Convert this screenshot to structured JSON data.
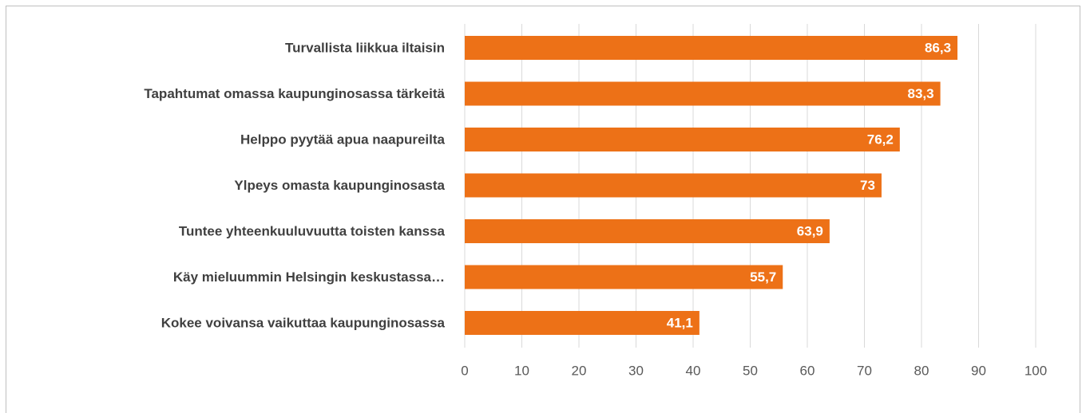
{
  "chart_data": {
    "type": "bar",
    "orientation": "horizontal",
    "categories": [
      "Turvallista liikkua iltaisin",
      "Tapahtumat omassa kaupunginosassa tärkeitä",
      "Helppo pyytää apua naapureilta",
      "Ylpeys omasta kaupunginosasta",
      "Tuntee yhteenkuuluvuutta toisten kanssa",
      "Käy mieluummin Helsingin keskustassa…",
      "Kokee voivansa vaikuttaa kaupunginosassa"
    ],
    "values": [
      86.3,
      83.3,
      76.2,
      73,
      63.9,
      55.7,
      41.1
    ],
    "value_labels": [
      "86,3",
      "83,3",
      "76,2",
      "73",
      "63,9",
      "55,7",
      "41,1"
    ],
    "color": "#ed7117",
    "xlim": [
      0,
      100
    ],
    "xticks": [
      0,
      10,
      20,
      30,
      40,
      50,
      60,
      70,
      80,
      90,
      100
    ],
    "grid": true
  }
}
